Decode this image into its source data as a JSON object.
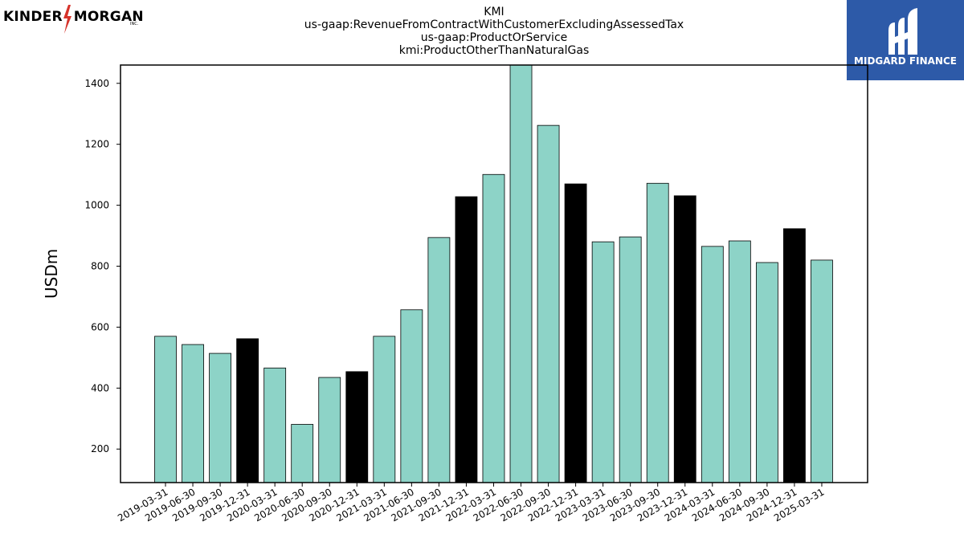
{
  "header": {
    "title_lines": [
      "KMI",
      "us-gaap:RevenueFromContractWithCustomerExcludingAssessedTax",
      "us-gaap:ProductOrService",
      "kmi:ProductOtherThanNaturalGas"
    ]
  },
  "logos": {
    "left": {
      "name": "KINDER MORGAN",
      "text_left": "KINDER",
      "text_right": "MORGAN",
      "suffix": "INC."
    },
    "right": {
      "name": "MIDGARD FINANCE",
      "bg_color": "#2d5aa8"
    }
  },
  "chart_data": {
    "type": "bar",
    "ylabel": "USDm",
    "xlabel": "",
    "ylim": [
      90,
      1460
    ],
    "yticks": [
      200,
      400,
      600,
      800,
      1000,
      1200,
      1400
    ],
    "categories": [
      "2019-03-31",
      "2019-06-30",
      "2019-09-30",
      "2019-12-31",
      "2020-03-31",
      "2020-06-30",
      "2020-09-30",
      "2020-12-31",
      "2021-03-31",
      "2021-06-30",
      "2021-09-30",
      "2021-12-31",
      "2022-03-31",
      "2022-06-30",
      "2022-09-30",
      "2022-12-31",
      "2023-03-31",
      "2023-06-30",
      "2023-09-30",
      "2023-12-31",
      "2024-03-31",
      "2024-06-30",
      "2024-09-30",
      "2024-12-31",
      "2025-03-31"
    ],
    "values": [
      570,
      543,
      514,
      562,
      466,
      281,
      435,
      454,
      570,
      657,
      894,
      1028,
      1101,
      1462,
      1262,
      1070,
      880,
      896,
      1072,
      1031,
      865,
      883,
      812,
      923,
      820
    ],
    "highlight_quarter": "12-31",
    "colors": {
      "regular": "#8dd3c7",
      "highlight": "#000000",
      "edge": "#000000"
    },
    "grid": false,
    "legend": "none"
  }
}
